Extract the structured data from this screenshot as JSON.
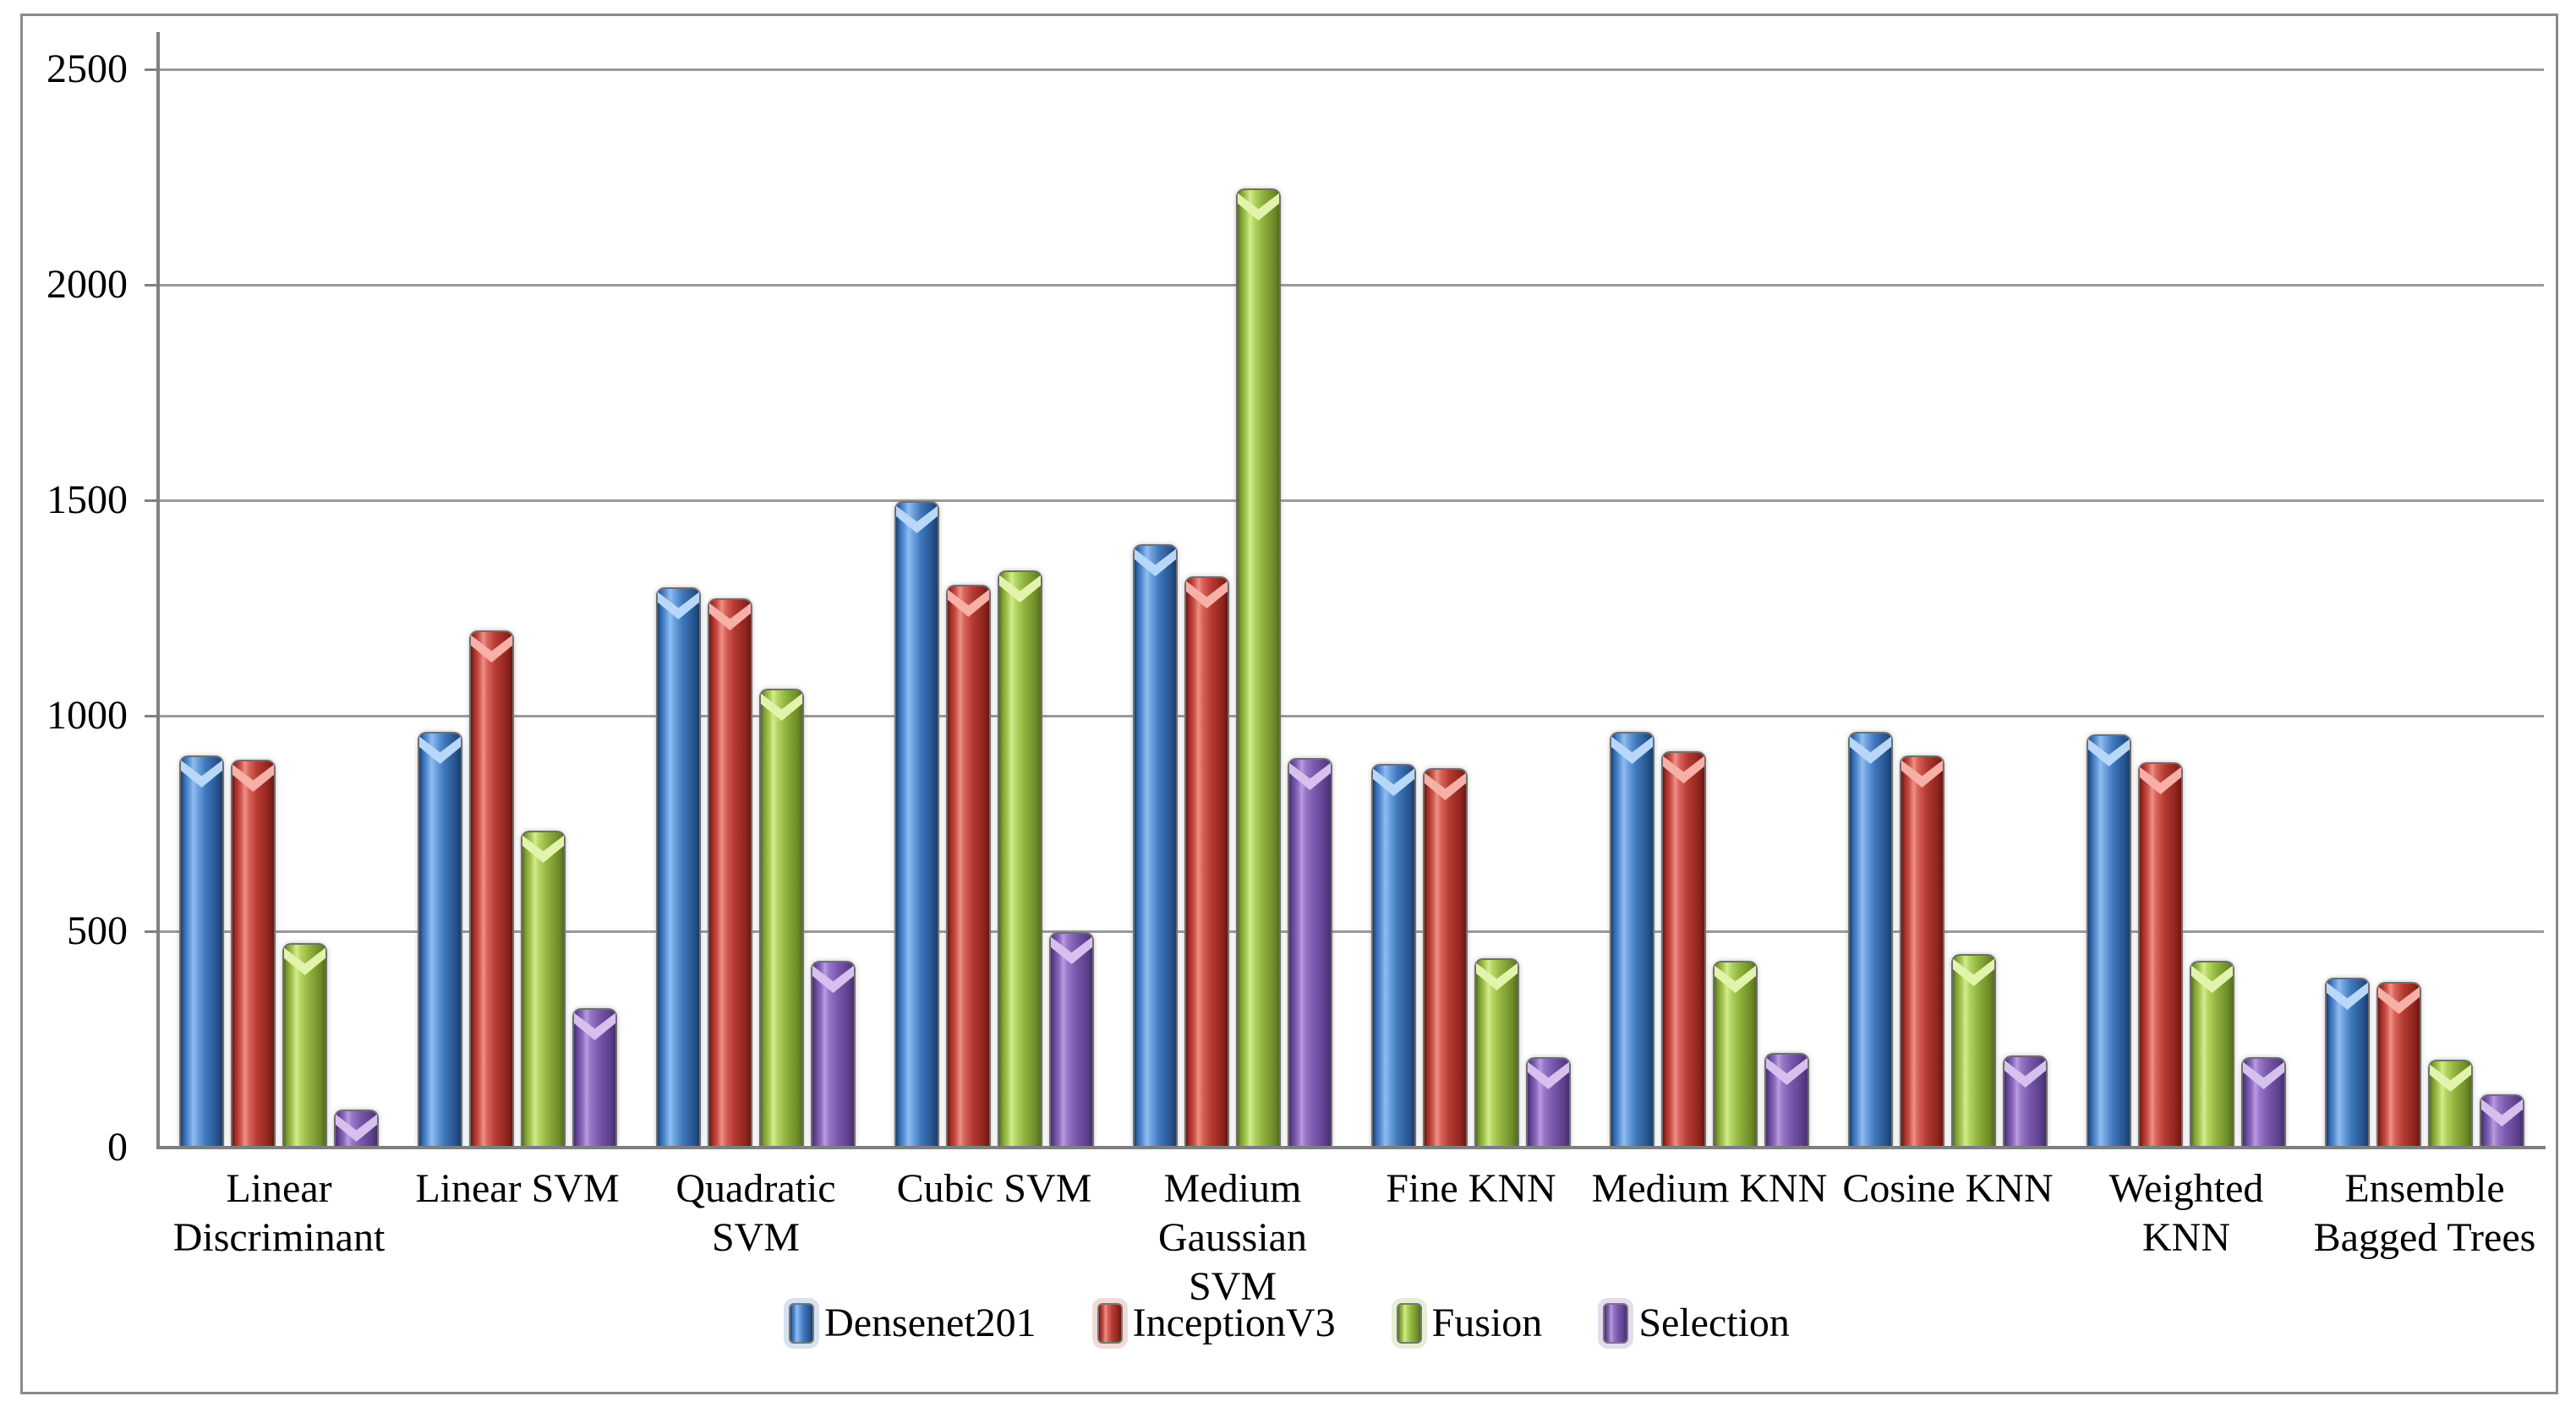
{
  "chart_data": {
    "type": "bar",
    "title": "",
    "categories": [
      "Linear Discriminant",
      "Linear SVM",
      "Quadratic SVM",
      "Cubic SVM",
      "Medium Gaussian SVM",
      "Fine KNN",
      "Medium KNN",
      "Cosine KNN",
      "Weighted KNN",
      "Ensemble Bagged Trees"
    ],
    "category_display": [
      "Linear\nDiscriminant",
      "Linear SVM",
      "Quadratic\nSVM",
      "Cubic SVM",
      "Medium\nGaussian SVM",
      "Fine KNN",
      "Medium KNN",
      "Cosine KNN",
      "Weighted\nKNN",
      "Ensemble\nBagged Trees"
    ],
    "series": [
      {
        "name": "Densenet201",
        "color": "#3D74BD",
        "values": [
          905,
          960,
          1295,
          1495,
          1395,
          885,
          960,
          960,
          955,
          390
        ]
      },
      {
        "name": "InceptionV3",
        "color": "#BE3B32",
        "values": [
          895,
          1195,
          1270,
          1300,
          1320,
          875,
          915,
          905,
          890,
          380
        ]
      },
      {
        "name": "Fusion",
        "color": "#94B843",
        "values": [
          470,
          730,
          1060,
          1335,
          2220,
          435,
          430,
          445,
          430,
          200
        ]
      },
      {
        "name": "Selection",
        "color": "#8A63B5",
        "values": [
          85,
          320,
          430,
          495,
          900,
          205,
          215,
          210,
          205,
          120
        ]
      }
    ],
    "ylim": [
      0,
      2500
    ],
    "yticks": [
      0,
      500,
      1000,
      1500,
      2000,
      2500
    ],
    "grid": "horizontal",
    "legend_position": "bottom",
    "gridline_color": "#9a9a9a",
    "axis_color": "#808080",
    "border_color": "#8a8a8a"
  }
}
